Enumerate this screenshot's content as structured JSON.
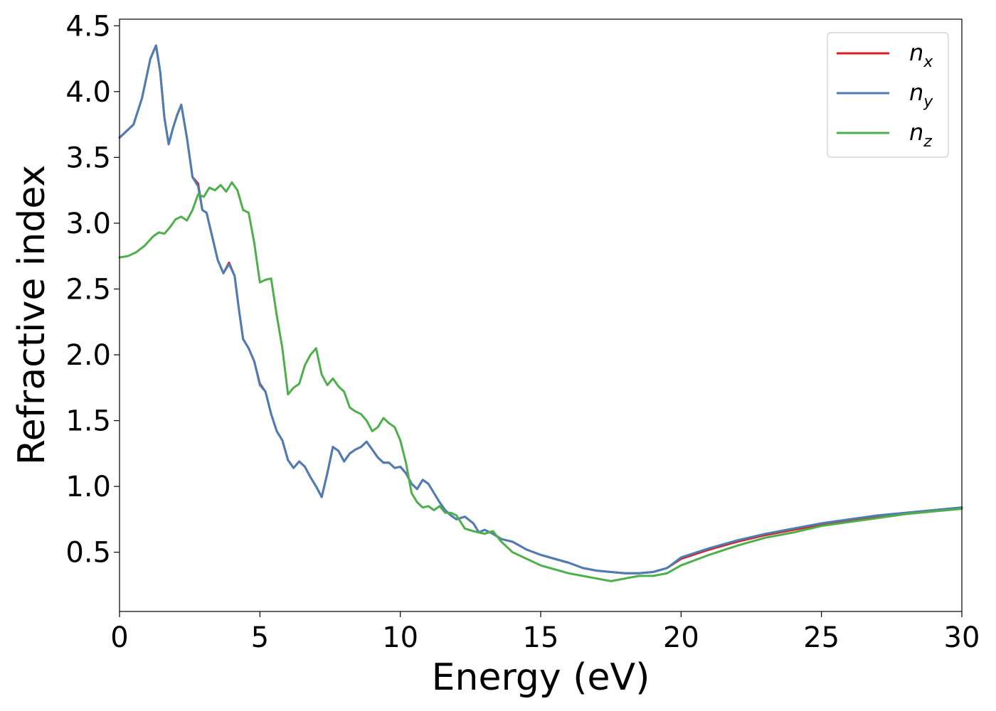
{
  "chart_data": {
    "type": "line",
    "title": "",
    "xlabel": "Energy (eV)",
    "ylabel": "Refractive index",
    "xlim": [
      0,
      30
    ],
    "ylim": [
      0.05,
      4.55
    ],
    "xticks": [
      0,
      5,
      10,
      15,
      20,
      25,
      30
    ],
    "xtick_labels": [
      "0",
      "5",
      "10",
      "15",
      "20",
      "25",
      "30"
    ],
    "yticks": [
      0.5,
      1.0,
      1.5,
      2.0,
      2.5,
      3.0,
      3.5,
      4.0,
      4.5
    ],
    "ytick_labels": [
      "0.5",
      "1.0",
      "1.5",
      "2.0",
      "2.5",
      "3.0",
      "3.5",
      "4.0",
      "4.5"
    ],
    "grid": false,
    "legend_position": "top-right",
    "series": [
      {
        "name": "n_x",
        "legend_base": "n",
        "legend_sub": "x",
        "color": "#e41a1c",
        "x": [
          0,
          0.5,
          0.8,
          1.1,
          1.3,
          1.45,
          1.6,
          1.75,
          1.9,
          2.05,
          2.2,
          2.4,
          2.6,
          2.8,
          2.95,
          3.1,
          3.3,
          3.5,
          3.7,
          3.9,
          4.1,
          4.25,
          4.4,
          4.6,
          4.8,
          5.0,
          5.2,
          5.4,
          5.6,
          5.8,
          6.0,
          6.2,
          6.4,
          6.6,
          6.8,
          7.0,
          7.2,
          7.4,
          7.6,
          7.8,
          8.0,
          8.2,
          8.4,
          8.6,
          8.8,
          9.0,
          9.2,
          9.4,
          9.6,
          9.8,
          10.0,
          10.2,
          10.4,
          10.6,
          10.8,
          11.0,
          11.2,
          11.4,
          11.6,
          11.8,
          12.0,
          12.3,
          12.6,
          12.8,
          13.0,
          13.3,
          13.6,
          14.0,
          14.5,
          15.0,
          15.5,
          16.0,
          16.5,
          17.0,
          17.5,
          18.0,
          18.5,
          19.0,
          19.5,
          20.0,
          21.0,
          22.0,
          23.0,
          24.0,
          25.0,
          26.0,
          27.0,
          28.0,
          29.0,
          30.0
        ],
        "y": [
          3.65,
          3.75,
          3.95,
          4.25,
          4.35,
          4.15,
          3.8,
          3.6,
          3.72,
          3.82,
          3.9,
          3.65,
          3.35,
          3.3,
          3.1,
          3.08,
          2.9,
          2.72,
          2.62,
          2.7,
          2.6,
          2.35,
          2.12,
          2.05,
          1.95,
          1.78,
          1.72,
          1.55,
          1.42,
          1.35,
          1.2,
          1.14,
          1.19,
          1.15,
          1.07,
          1.0,
          0.92,
          1.1,
          1.3,
          1.27,
          1.19,
          1.25,
          1.28,
          1.3,
          1.34,
          1.28,
          1.22,
          1.18,
          1.18,
          1.14,
          1.15,
          1.1,
          1.02,
          0.98,
          1.05,
          1.02,
          0.95,
          0.88,
          0.82,
          0.78,
          0.75,
          0.77,
          0.72,
          0.65,
          0.67,
          0.64,
          0.6,
          0.58,
          0.52,
          0.48,
          0.45,
          0.42,
          0.38,
          0.36,
          0.35,
          0.34,
          0.34,
          0.35,
          0.38,
          0.45,
          0.52,
          0.58,
          0.63,
          0.67,
          0.71,
          0.74,
          0.77,
          0.8,
          0.82,
          0.84
        ]
      },
      {
        "name": "n_y",
        "legend_base": "n",
        "legend_sub": "y",
        "color": "#4a7fb5",
        "x": [
          0,
          0.5,
          0.8,
          1.1,
          1.3,
          1.45,
          1.6,
          1.75,
          1.9,
          2.05,
          2.2,
          2.4,
          2.6,
          2.8,
          2.95,
          3.1,
          3.3,
          3.5,
          3.7,
          3.9,
          4.1,
          4.25,
          4.4,
          4.6,
          4.8,
          5.0,
          5.2,
          5.4,
          5.6,
          5.8,
          6.0,
          6.2,
          6.4,
          6.6,
          6.8,
          7.0,
          7.2,
          7.4,
          7.6,
          7.8,
          8.0,
          8.2,
          8.4,
          8.6,
          8.8,
          9.0,
          9.2,
          9.4,
          9.6,
          9.8,
          10.0,
          10.2,
          10.4,
          10.6,
          10.8,
          11.0,
          11.2,
          11.4,
          11.6,
          11.8,
          12.0,
          12.3,
          12.6,
          12.8,
          13.0,
          13.3,
          13.6,
          14.0,
          14.5,
          15.0,
          15.5,
          16.0,
          16.5,
          17.0,
          17.5,
          18.0,
          18.5,
          19.0,
          19.5,
          20.0,
          21.0,
          22.0,
          23.0,
          24.0,
          25.0,
          26.0,
          27.0,
          28.0,
          29.0,
          30.0
        ],
        "y": [
          3.65,
          3.75,
          3.95,
          4.25,
          4.35,
          4.15,
          3.8,
          3.6,
          3.72,
          3.82,
          3.9,
          3.65,
          3.35,
          3.28,
          3.1,
          3.08,
          2.9,
          2.72,
          2.62,
          2.69,
          2.6,
          2.35,
          2.12,
          2.05,
          1.95,
          1.77,
          1.72,
          1.55,
          1.42,
          1.35,
          1.2,
          1.14,
          1.19,
          1.15,
          1.07,
          1.0,
          0.92,
          1.1,
          1.3,
          1.27,
          1.19,
          1.25,
          1.28,
          1.3,
          1.34,
          1.28,
          1.22,
          1.18,
          1.18,
          1.14,
          1.15,
          1.1,
          1.02,
          0.98,
          1.05,
          1.02,
          0.95,
          0.88,
          0.82,
          0.78,
          0.75,
          0.77,
          0.72,
          0.65,
          0.67,
          0.64,
          0.6,
          0.58,
          0.52,
          0.48,
          0.45,
          0.42,
          0.38,
          0.36,
          0.35,
          0.34,
          0.34,
          0.35,
          0.38,
          0.46,
          0.53,
          0.59,
          0.64,
          0.68,
          0.72,
          0.75,
          0.78,
          0.8,
          0.82,
          0.84
        ]
      },
      {
        "name": "n_z",
        "legend_base": "n",
        "legend_sub": "z",
        "color": "#4daf4a",
        "x": [
          0,
          0.3,
          0.6,
          0.9,
          1.2,
          1.4,
          1.6,
          1.8,
          2.0,
          2.2,
          2.4,
          2.6,
          2.8,
          3.0,
          3.2,
          3.4,
          3.6,
          3.8,
          4.0,
          4.2,
          4.4,
          4.6,
          4.8,
          5.0,
          5.2,
          5.4,
          5.6,
          5.8,
          6.0,
          6.2,
          6.4,
          6.6,
          6.8,
          7.0,
          7.2,
          7.4,
          7.6,
          7.8,
          8.0,
          8.2,
          8.4,
          8.6,
          8.8,
          9.0,
          9.2,
          9.4,
          9.6,
          9.8,
          10.0,
          10.2,
          10.4,
          10.6,
          10.8,
          11.0,
          11.2,
          11.4,
          11.6,
          11.8,
          12.0,
          12.3,
          12.6,
          13.0,
          13.3,
          13.6,
          14.0,
          14.5,
          15.0,
          15.5,
          16.0,
          16.5,
          17.0,
          17.5,
          18.0,
          18.5,
          19.0,
          19.5,
          20.0,
          21.0,
          22.0,
          23.0,
          24.0,
          25.0,
          26.0,
          27.0,
          28.0,
          29.0,
          30.0
        ],
        "y": [
          2.74,
          2.75,
          2.78,
          2.83,
          2.9,
          2.93,
          2.92,
          2.97,
          3.03,
          3.05,
          3.02,
          3.1,
          3.22,
          3.2,
          3.27,
          3.25,
          3.29,
          3.24,
          3.31,
          3.25,
          3.1,
          3.08,
          2.85,
          2.55,
          2.57,
          2.58,
          2.3,
          2.05,
          1.7,
          1.75,
          1.78,
          1.92,
          2.0,
          2.05,
          1.85,
          1.77,
          1.82,
          1.76,
          1.72,
          1.6,
          1.57,
          1.55,
          1.5,
          1.42,
          1.45,
          1.52,
          1.48,
          1.45,
          1.35,
          1.18,
          0.95,
          0.88,
          0.84,
          0.85,
          0.82,
          0.85,
          0.8,
          0.8,
          0.78,
          0.68,
          0.66,
          0.64,
          0.66,
          0.58,
          0.5,
          0.45,
          0.4,
          0.37,
          0.34,
          0.32,
          0.3,
          0.28,
          0.3,
          0.32,
          0.32,
          0.34,
          0.4,
          0.48,
          0.55,
          0.61,
          0.65,
          0.7,
          0.73,
          0.76,
          0.79,
          0.81,
          0.83
        ]
      }
    ]
  }
}
